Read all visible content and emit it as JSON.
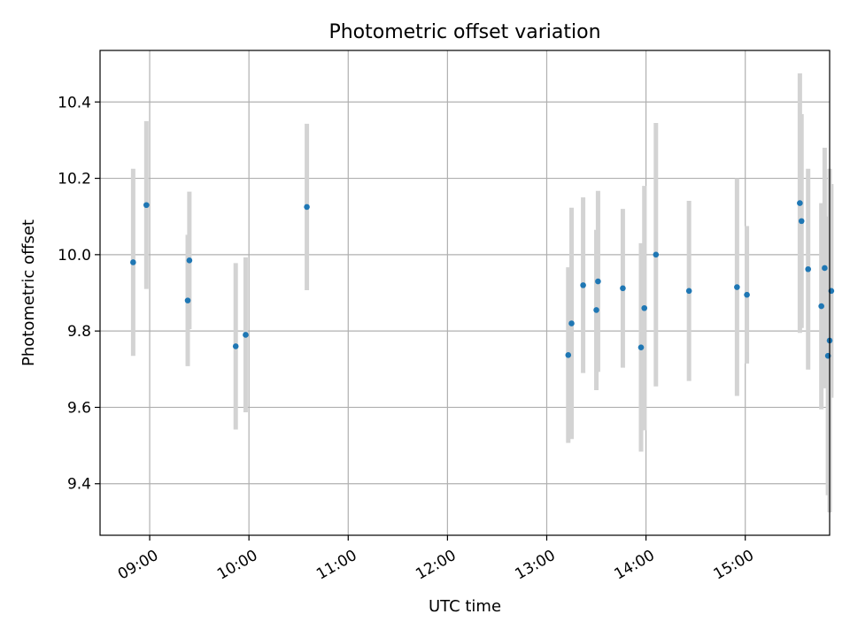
{
  "chart_data": {
    "type": "scatter",
    "title": "Photometric offset variation",
    "xlabel": "UTC time",
    "ylabel": "Photometric offset",
    "grid": true,
    "xlim": [
      "08:30",
      "15:51"
    ],
    "ylim": [
      9.265,
      10.535
    ],
    "x_ticks": [
      "09:00",
      "10:00",
      "11:00",
      "12:00",
      "13:00",
      "14:00",
      "15:00"
    ],
    "y_ticks": [
      "9.4",
      "9.6",
      "9.8",
      "10.0",
      "10.2",
      "10.4"
    ],
    "colors": {
      "point": "#1f77b4",
      "errorbar": "#d3d3d3",
      "grid": "#b0b0b0"
    },
    "points": [
      {
        "x": "08:50",
        "y": 9.98,
        "err": 0.245
      },
      {
        "x": "08:58",
        "y": 10.13,
        "err": 0.22
      },
      {
        "x": "09:23",
        "y": 9.88,
        "err": 0.172
      },
      {
        "x": "09:24",
        "y": 9.985,
        "err": 0.18
      },
      {
        "x": "09:52",
        "y": 9.76,
        "err": 0.218
      },
      {
        "x": "09:58",
        "y": 9.79,
        "err": 0.203
      },
      {
        "x": "10:35",
        "y": 10.125,
        "err": 0.218
      },
      {
        "x": "13:13",
        "y": 9.737,
        "err": 0.23
      },
      {
        "x": "13:15",
        "y": 9.82,
        "err": 0.303
      },
      {
        "x": "13:22",
        "y": 9.92,
        "err": 0.23
      },
      {
        "x": "13:30",
        "y": 9.855,
        "err": 0.21
      },
      {
        "x": "13:31",
        "y": 9.93,
        "err": 0.237
      },
      {
        "x": "13:46",
        "y": 9.912,
        "err": 0.208
      },
      {
        "x": "13:57",
        "y": 9.757,
        "err": 0.273
      },
      {
        "x": "13:59",
        "y": 9.86,
        "err": 0.32
      },
      {
        "x": "14:06",
        "y": 10.0,
        "err": 0.345
      },
      {
        "x": "14:26",
        "y": 9.905,
        "err": 0.236
      },
      {
        "x": "14:55",
        "y": 9.915,
        "err": 0.285
      },
      {
        "x": "15:01",
        "y": 9.895,
        "err": 0.18
      },
      {
        "x": "15:33",
        "y": 10.135,
        "err": 0.34
      },
      {
        "x": "15:34",
        "y": 10.088,
        "err": 0.28
      },
      {
        "x": "15:38",
        "y": 9.962,
        "err": 0.263
      },
      {
        "x": "15:46",
        "y": 9.865,
        "err": 0.27
      },
      {
        "x": "15:48",
        "y": 9.965,
        "err": 0.315
      },
      {
        "x": "15:50",
        "y": 9.735,
        "err": 0.365
      },
      {
        "x": "15:51",
        "y": 9.775,
        "err": 0.45
      },
      {
        "x": "15:52",
        "y": 9.905,
        "err": 0.28
      }
    ]
  }
}
